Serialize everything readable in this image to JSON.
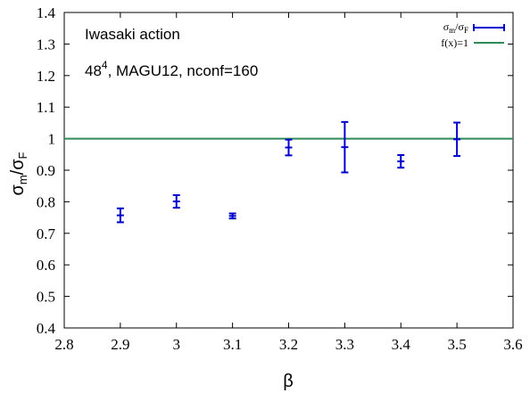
{
  "chart_data": {
    "type": "scatter",
    "xlabel": "β",
    "ylabel_main": "σ",
    "ylabel_sub_m": "m",
    "ylabel_slash": "/",
    "ylabel_sub_f": "F",
    "xlim": [
      2.8,
      3.6
    ],
    "ylim": [
      0.4,
      1.4
    ],
    "x_ticks": [
      "2.8",
      "2.9",
      "3",
      "3.1",
      "3.2",
      "3.3",
      "3.4",
      "3.5",
      "3.6"
    ],
    "x_tick_values": [
      2.8,
      2.9,
      3.0,
      3.1,
      3.2,
      3.3,
      3.4,
      3.5,
      3.6
    ],
    "y_ticks": [
      "0.4",
      "0.5",
      "0.6",
      "0.7",
      "0.8",
      "0.9",
      "1",
      "1.1",
      "1.2",
      "1.3",
      "1.4"
    ],
    "y_tick_values": [
      0.4,
      0.5,
      0.6,
      0.7,
      0.8,
      0.9,
      1.0,
      1.1,
      1.2,
      1.3,
      1.4
    ],
    "grid": false,
    "legend_position": "top-right",
    "annotations": {
      "line1": "Iwasaki action",
      "line2_prefix": "48",
      "line2_sup": "4",
      "line2_suffix": ", MAGU12, nconf=160"
    },
    "legend": {
      "series_main": "σ",
      "series_sub_m": "m",
      "series_slash": "/σ",
      "series_sub_f": "F",
      "reference": "f(x)=1"
    },
    "series": [
      {
        "kind": "errorbar",
        "color": "#0000cc",
        "points": [
          {
            "x": 2.9,
            "y": 0.757,
            "err": 0.022
          },
          {
            "x": 3.0,
            "y": 0.801,
            "err": 0.02
          },
          {
            "x": 3.1,
            "y": 0.755,
            "err": 0.008
          },
          {
            "x": 3.2,
            "y": 0.972,
            "err": 0.025
          },
          {
            "x": 3.3,
            "y": 0.973,
            "err": 0.08
          },
          {
            "x": 3.4,
            "y": 0.928,
            "err": 0.02
          },
          {
            "x": 3.5,
            "y": 0.998,
            "err": 0.053
          }
        ]
      },
      {
        "kind": "line",
        "color": "#2e8b57",
        "y_constant": 1.0
      }
    ]
  }
}
